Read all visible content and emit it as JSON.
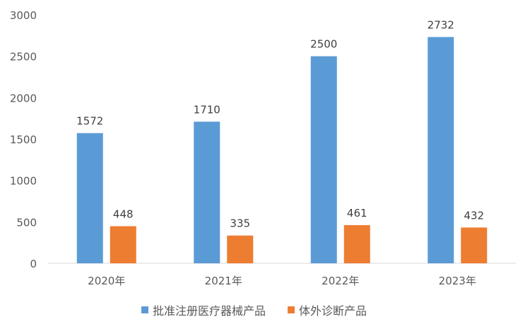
{
  "chart_data": {
    "type": "bar",
    "title": "",
    "xlabel": "",
    "ylabel": "",
    "categories": [
      "2020年",
      "2021年",
      "2022年",
      "2023年"
    ],
    "series": [
      {
        "name": "批准注册医疗器械产品",
        "color": "#5B9BD5",
        "values": [
          1572,
          1710,
          2500,
          2732
        ]
      },
      {
        "name": "体外诊断产品",
        "color": "#ED7D31",
        "values": [
          448,
          335,
          461,
          432
        ]
      }
    ],
    "ylim": [
      0,
      3000
    ],
    "yticks": [
      0,
      500,
      1000,
      1500,
      2000,
      2500,
      3000
    ],
    "grid": false,
    "legend": "bottom"
  }
}
